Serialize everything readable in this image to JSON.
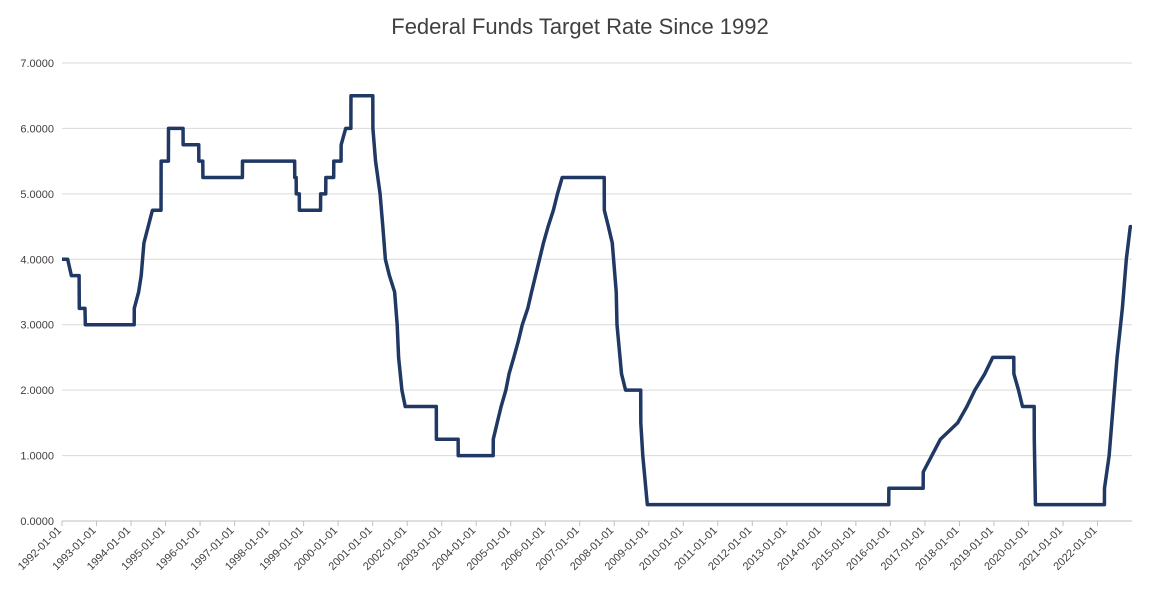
{
  "chart_data": {
    "type": "line",
    "title": "Federal Funds Target Rate Since 1992",
    "xlabel": "",
    "ylabel": "",
    "ylim": [
      0,
      7
    ],
    "y_ticks": [
      "0.0000",
      "1.0000",
      "2.0000",
      "3.0000",
      "4.0000",
      "5.0000",
      "6.0000",
      "7.0000"
    ],
    "x_ticks": [
      "1992-01-01",
      "1993-01-01",
      "1994-01-01",
      "1995-01-01",
      "1996-01-01",
      "1997-01-01",
      "1998-01-01",
      "1999-01-01",
      "2000-01-01",
      "2001-01-01",
      "2002-01-01",
      "2003-01-01",
      "2004-01-01",
      "2005-01-01",
      "2006-01-01",
      "2007-01-01",
      "2008-01-01",
      "2009-01-01",
      "2010-01-01",
      "2011-01-01",
      "2012-01-01",
      "2013-01-01",
      "2014-01-01",
      "2015-01-01",
      "2016-01-01",
      "2017-01-01",
      "2018-01-01",
      "2019-01-01",
      "2020-01-01",
      "2021-01-01",
      "2022-01-01"
    ],
    "x_range": [
      "1992-01-01",
      "2022-12-31"
    ],
    "grid": true,
    "legend": "none",
    "series_color": "#203864",
    "series": [
      {
        "values": [
          [
            "1992-01-01",
            4.0
          ],
          [
            "1992-03-01",
            4.0
          ],
          [
            "1992-04-09",
            3.75
          ],
          [
            "1992-06-30",
            3.75
          ],
          [
            "1992-07-02",
            3.25
          ],
          [
            "1992-08-31",
            3.25
          ],
          [
            "1992-09-04",
            3.0
          ],
          [
            "1994-02-03",
            3.0
          ],
          [
            "1994-02-04",
            3.25
          ],
          [
            "1994-03-22",
            3.5
          ],
          [
            "1994-04-18",
            3.75
          ],
          [
            "1994-05-17",
            4.25
          ],
          [
            "1994-08-15",
            4.75
          ],
          [
            "1994-11-14",
            4.75
          ],
          [
            "1994-11-15",
            5.5
          ],
          [
            "1995-01-31",
            5.5
          ],
          [
            "1995-02-01",
            6.0
          ],
          [
            "1995-07-05",
            6.0
          ],
          [
            "1995-07-06",
            5.75
          ],
          [
            "1995-12-18",
            5.75
          ],
          [
            "1995-12-19",
            5.5
          ],
          [
            "1996-01-30",
            5.5
          ],
          [
            "1996-01-31",
            5.25
          ],
          [
            "1997-03-24",
            5.25
          ],
          [
            "1997-03-25",
            5.5
          ],
          [
            "1998-09-28",
            5.5
          ],
          [
            "1998-09-29",
            5.25
          ],
          [
            "1998-10-14",
            5.25
          ],
          [
            "1998-10-15",
            5.0
          ],
          [
            "1998-11-16",
            5.0
          ],
          [
            "1998-11-17",
            4.75
          ],
          [
            "1999-06-29",
            4.75
          ],
          [
            "1999-06-30",
            5.0
          ],
          [
            "1999-08-23",
            5.0
          ],
          [
            "1999-08-24",
            5.25
          ],
          [
            "1999-11-15",
            5.25
          ],
          [
            "1999-11-16",
            5.5
          ],
          [
            "2000-02-01",
            5.5
          ],
          [
            "2000-02-02",
            5.75
          ],
          [
            "2000-03-21",
            6.0
          ],
          [
            "2000-05-15",
            6.0
          ],
          [
            "2000-05-16",
            6.5
          ],
          [
            "2001-01-02",
            6.5
          ],
          [
            "2001-01-03",
            6.0
          ],
          [
            "2001-01-31",
            5.5
          ],
          [
            "2001-03-20",
            5.0
          ],
          [
            "2001-04-18",
            4.5
          ],
          [
            "2001-05-15",
            4.0
          ],
          [
            "2001-06-27",
            3.75
          ],
          [
            "2001-08-21",
            3.5
          ],
          [
            "2001-09-17",
            3.0
          ],
          [
            "2001-10-02",
            2.5
          ],
          [
            "2001-11-06",
            2.0
          ],
          [
            "2001-12-11",
            1.75
          ],
          [
            "2002-11-05",
            1.75
          ],
          [
            "2002-11-06",
            1.25
          ],
          [
            "2003-06-24",
            1.25
          ],
          [
            "2003-06-25",
            1.0
          ],
          [
            "2004-06-29",
            1.0
          ],
          [
            "2004-06-30",
            1.25
          ],
          [
            "2004-08-10",
            1.5
          ],
          [
            "2004-09-21",
            1.75
          ],
          [
            "2004-11-10",
            2.0
          ],
          [
            "2004-12-14",
            2.25
          ],
          [
            "2005-02-02",
            2.5
          ],
          [
            "2005-03-22",
            2.75
          ],
          [
            "2005-05-03",
            3.0
          ],
          [
            "2005-06-30",
            3.25
          ],
          [
            "2005-08-09",
            3.5
          ],
          [
            "2005-09-20",
            3.75
          ],
          [
            "2005-11-01",
            4.0
          ],
          [
            "2005-12-13",
            4.25
          ],
          [
            "2006-01-31",
            4.5
          ],
          [
            "2006-03-28",
            4.75
          ],
          [
            "2006-05-10",
            5.0
          ],
          [
            "2006-06-29",
            5.25
          ],
          [
            "2007-09-17",
            5.25
          ],
          [
            "2007-09-18",
            4.75
          ],
          [
            "2007-10-31",
            4.5
          ],
          [
            "2007-12-11",
            4.25
          ],
          [
            "2008-01-22",
            3.5
          ],
          [
            "2008-01-30",
            3.0
          ],
          [
            "2008-03-18",
            2.25
          ],
          [
            "2008-04-30",
            2.0
          ],
          [
            "2008-10-07",
            2.0
          ],
          [
            "2008-10-08",
            1.5
          ],
          [
            "2008-10-29",
            1.0
          ],
          [
            "2008-12-16",
            0.25
          ],
          [
            "2015-12-15",
            0.25
          ],
          [
            "2015-12-16",
            0.5
          ],
          [
            "2016-12-13",
            0.5
          ],
          [
            "2016-12-14",
            0.75
          ],
          [
            "2017-03-15",
            1.0
          ],
          [
            "2017-06-14",
            1.25
          ],
          [
            "2017-12-13",
            1.5
          ],
          [
            "2018-03-21",
            1.75
          ],
          [
            "2018-06-13",
            2.0
          ],
          [
            "2018-09-26",
            2.25
          ],
          [
            "2018-12-19",
            2.5
          ],
          [
            "2019-07-30",
            2.5
          ],
          [
            "2019-07-31",
            2.25
          ],
          [
            "2019-09-18",
            2.0
          ],
          [
            "2019-10-30",
            1.75
          ],
          [
            "2020-03-02",
            1.75
          ],
          [
            "2020-03-03",
            1.25
          ],
          [
            "2020-03-15",
            0.25
          ],
          [
            "2022-03-15",
            0.25
          ],
          [
            "2022-03-16",
            0.5
          ],
          [
            "2022-05-04",
            1.0
          ],
          [
            "2022-06-15",
            1.75
          ],
          [
            "2022-07-27",
            2.5
          ],
          [
            "2022-09-21",
            3.25
          ],
          [
            "2022-11-02",
            4.0
          ],
          [
            "2022-12-14",
            4.5
          ],
          [
            "2022-12-31",
            4.5
          ]
        ]
      }
    ]
  }
}
